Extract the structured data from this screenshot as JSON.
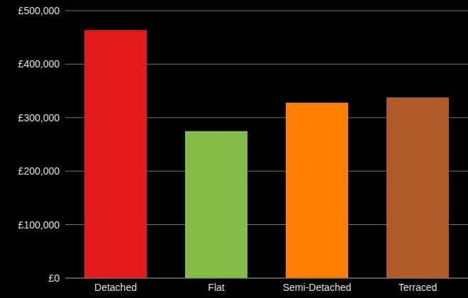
{
  "chart_data": {
    "type": "bar",
    "categories": [
      "Detached",
      "Flat",
      "Semi-Detached",
      "Terraced"
    ],
    "values": [
      464000,
      275000,
      328000,
      338000
    ],
    "colors": [
      "#e31a1c",
      "#83bc44",
      "#ff7f00",
      "#b05a28"
    ],
    "ylim": [
      0,
      500000
    ],
    "yticks": [
      {
        "value": 0,
        "label": "£0"
      },
      {
        "value": 100000,
        "label": "£100,000"
      },
      {
        "value": 200000,
        "label": "£200,000"
      },
      {
        "value": 300000,
        "label": "£300,000"
      },
      {
        "value": 400000,
        "label": "£400,000"
      },
      {
        "value": 500000,
        "label": "£500,000"
      }
    ],
    "grid": true
  }
}
